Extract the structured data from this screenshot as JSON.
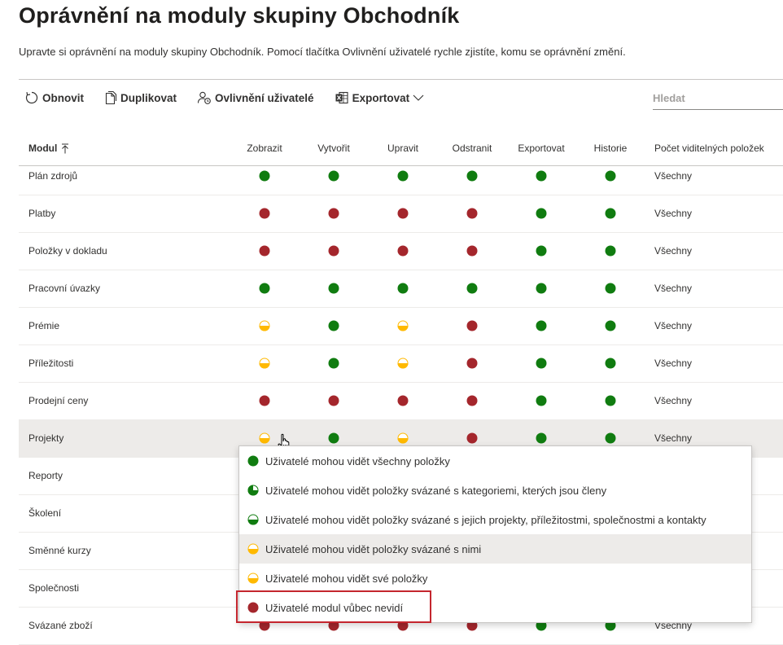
{
  "page": {
    "title": "Oprávnění na moduly skupiny Obchodník",
    "description": "Upravte si oprávnění na moduly skupiny Obchodník. Pomocí tlačítka Ovlivnění uživatelé rychle zjistíte, komu se oprávnění změní."
  },
  "toolbar": {
    "refresh": {
      "label": "Obnovit",
      "icon": "refresh-icon"
    },
    "duplicate": {
      "label": "Duplikovat",
      "icon": "copy-icon"
    },
    "affected": {
      "label": "Ovlivnění uživatelé",
      "icon": "users-icon"
    },
    "export": {
      "label": "Exportovat",
      "icon": "excel-icon"
    },
    "search_placeholder": "Hledat"
  },
  "colors": {
    "green": "#107c10",
    "red": "#a4262c",
    "yellow": "#ffb900",
    "highlight": "#edebe9",
    "redbox": "#c4262e"
  },
  "table": {
    "headers": {
      "module": "Modul",
      "columns": [
        "Zobrazit",
        "Vytvořit",
        "Upravit",
        "Odstranit",
        "Exportovat",
        "Historie"
      ],
      "count": "Počet viditelných položek"
    },
    "rows": [
      {
        "module": "Plán zdrojů",
        "perms": [
          "green",
          "green",
          "green",
          "green",
          "green",
          "green"
        ],
        "count": "Všechny"
      },
      {
        "module": "Platby",
        "perms": [
          "red",
          "red",
          "red",
          "red",
          "green",
          "green"
        ],
        "count": "Všechny"
      },
      {
        "module": "Položky v dokladu",
        "perms": [
          "red",
          "red",
          "red",
          "red",
          "green",
          "green"
        ],
        "count": "Všechny"
      },
      {
        "module": "Pracovní úvazky",
        "perms": [
          "green",
          "green",
          "green",
          "green",
          "green",
          "green"
        ],
        "count": "Všechny"
      },
      {
        "module": "Prémie",
        "perms": [
          "yellow-half",
          "green",
          "yellow-half",
          "red",
          "green",
          "green"
        ],
        "count": "Všechny"
      },
      {
        "module": "Příležitosti",
        "perms": [
          "yellow-half",
          "green",
          "yellow-half",
          "red",
          "green",
          "green"
        ],
        "count": "Všechny"
      },
      {
        "module": "Prodejní ceny",
        "perms": [
          "red",
          "red",
          "red",
          "red",
          "green",
          "green"
        ],
        "count": "Všechny"
      },
      {
        "module": "Projekty",
        "perms": [
          "yellow-half",
          "green",
          "yellow-half",
          "red",
          "green",
          "green"
        ],
        "count": "Všechny",
        "selected": true
      },
      {
        "module": "Reporty",
        "perms": [],
        "count": ""
      },
      {
        "module": "Školení",
        "perms": [],
        "count": ""
      },
      {
        "module": "Směnné kurzy",
        "perms": [],
        "count": ""
      },
      {
        "module": "Společnosti",
        "perms": [],
        "count": ""
      },
      {
        "module": "Svázané zboží",
        "perms": [
          "red",
          "red",
          "red",
          "red",
          "green",
          "green"
        ],
        "count": "Všechny"
      }
    ]
  },
  "popup": {
    "items": [
      {
        "label": "Uživatelé mohou vidět všechny položky",
        "icon": "green"
      },
      {
        "label": "Uživatelé mohou vidět položky svázané s kategoriemi, kterých jsou členy",
        "icon": "green-three-quarter"
      },
      {
        "label": "Uživatelé mohou vidět položky svázané s jejich projekty, příležitostmi, společnostmi a kontakty",
        "icon": "green-half"
      },
      {
        "label": "Uživatelé mohou vidět položky svázané s nimi",
        "icon": "yellow-half",
        "highlighted": true
      },
      {
        "label": "Uživatelé mohou vidět své položky",
        "icon": "yellow-quarter"
      },
      {
        "label": "Uživatelé modul vůbec nevidí",
        "icon": "red",
        "boxed": true
      }
    ]
  }
}
